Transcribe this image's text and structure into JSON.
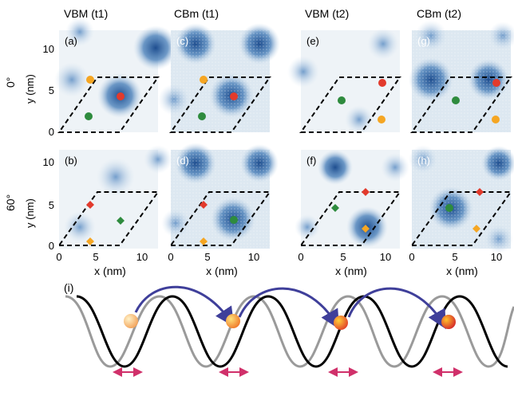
{
  "columns": [
    "VBM (t1)",
    "CBm (t1)",
    "VBM (t2)",
    "CBm (t2)"
  ],
  "rows": [
    "0°",
    "60°"
  ],
  "panel_labels": [
    "(a)",
    "(c)",
    "(e)",
    "(g)",
    "(b)",
    "(d)",
    "(f)",
    "(h)"
  ],
  "axes": {
    "x_label": "x (nm)",
    "y_label": "y (nm)",
    "x_ticks": [
      "0",
      "5",
      "10"
    ],
    "y_ticks": [
      "0",
      "5",
      "10"
    ]
  },
  "bottom_panel": {
    "label": "(i)"
  },
  "colors": {
    "map_light": "#eef3f7",
    "map_dark": "#1f4e8f",
    "red": "#e23a2c",
    "orange": "#f5a623",
    "green": "#2e8b3e",
    "curve_black": "#000000",
    "curve_gray": "#9a9a9a",
    "hop_arrow": "#3f3f9a",
    "shift_arrow": "#d0306a"
  }
}
